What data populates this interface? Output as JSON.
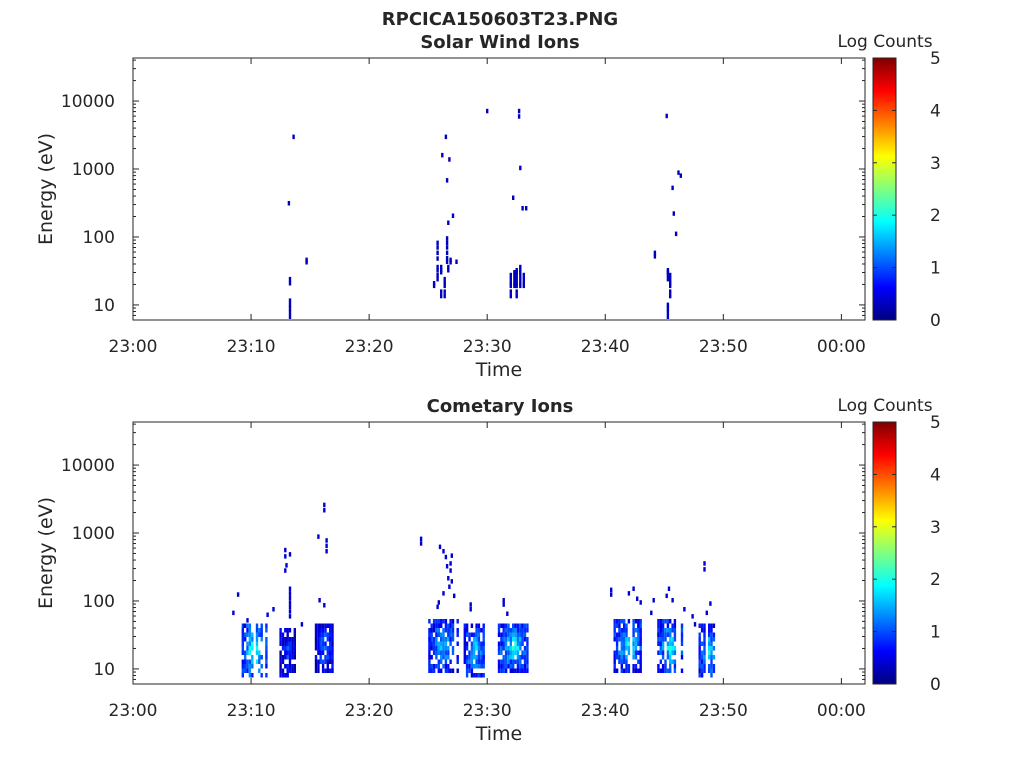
{
  "figure": {
    "filename": "RPCICA150603T23.PNG"
  },
  "colormap": "jet",
  "chart_data": [
    {
      "type": "heatmap",
      "title": "Solar Wind Ions",
      "xlabel": "Time",
      "ylabel": "Energy (eV)",
      "yscale": "log",
      "xticks": [
        "23:00",
        "23:10",
        "23:20",
        "23:30",
        "23:40",
        "23:50",
        "00:00"
      ],
      "yticks": [
        "10",
        "100",
        "1000",
        "10000"
      ],
      "colorbar": {
        "label": "Log Counts",
        "ticks": [
          "0",
          "1",
          "2",
          "3",
          "4",
          "5"
        ]
      },
      "points": [
        [
          13.2,
          6.2,
          0.3
        ],
        [
          13.2,
          7.2,
          0.3
        ],
        [
          13.2,
          8.2,
          0.3
        ],
        [
          13.2,
          9.3,
          0.3
        ],
        [
          13.2,
          10.7,
          0.3
        ],
        [
          13.2,
          19.3,
          0.3
        ],
        [
          13.2,
          22.2,
          0.3
        ],
        [
          13.1,
          290,
          0.3
        ],
        [
          13.5,
          2750,
          0.3
        ],
        [
          14.6,
          39.3,
          0.3
        ],
        [
          14.6,
          42.7,
          0.3
        ],
        [
          25.4,
          17.7,
          0.3
        ],
        [
          25.4,
          19.3,
          0.3
        ],
        [
          25.7,
          22.2,
          0.3
        ],
        [
          25.7,
          25.5,
          0.3
        ],
        [
          25.7,
          30,
          0.3
        ],
        [
          25.7,
          33.4,
          0.3
        ],
        [
          25.7,
          44.6,
          0.3
        ],
        [
          25.7,
          54,
          0.3
        ],
        [
          25.7,
          65,
          0.3
        ],
        [
          25.7,
          76,
          0.3
        ],
        [
          26.0,
          12.5,
          0.3
        ],
        [
          26.0,
          14.5,
          0.3
        ],
        [
          26.0,
          28,
          0.3
        ],
        [
          26.0,
          30,
          0.3
        ],
        [
          26.0,
          33.4,
          0.3
        ],
        [
          26.3,
          12.5,
          0.3
        ],
        [
          26.3,
          14.5,
          0.3
        ],
        [
          26.3,
          17.7,
          0.3
        ],
        [
          26.3,
          19.3,
          0.3
        ],
        [
          26.3,
          22.2,
          0.3
        ],
        [
          26.5,
          40,
          0.3
        ],
        [
          26.5,
          45,
          0.3
        ],
        [
          26.5,
          54,
          0.3
        ],
        [
          26.5,
          65,
          0.3
        ],
        [
          26.5,
          76,
          0.3
        ],
        [
          26.5,
          88,
          0.3
        ],
        [
          26.6,
          30,
          0.3
        ],
        [
          26.6,
          33.4,
          0.3
        ],
        [
          26.8,
          39.3,
          0.3
        ],
        [
          26.8,
          42.7,
          0.3
        ],
        [
          26.1,
          1480,
          0.3
        ],
        [
          26.4,
          2750,
          0.3
        ],
        [
          26.7,
          1280,
          0.3
        ],
        [
          26.5,
          630,
          0.3
        ],
        [
          26.6,
          150,
          0.3
        ],
        [
          27.0,
          190,
          0.3
        ],
        [
          27.3,
          40,
          0.3
        ],
        [
          29.9,
          6600,
          0.3
        ],
        [
          32.1,
          350,
          0.3
        ],
        [
          32.6,
          5500,
          0.3
        ],
        [
          32.6,
          6600,
          0.3
        ],
        [
          32.7,
          960,
          0.3
        ],
        [
          32.9,
          245,
          0.3
        ],
        [
          33.2,
          245,
          0.3
        ],
        [
          31.9,
          12.5,
          0.3
        ],
        [
          31.9,
          14.5,
          0.3
        ],
        [
          31.9,
          17.7,
          0.3
        ],
        [
          31.9,
          19.3,
          0.3
        ],
        [
          31.9,
          22.2,
          0.3
        ],
        [
          31.9,
          25.5,
          0.3
        ],
        [
          32.2,
          17.7,
          0.3
        ],
        [
          32.2,
          19.3,
          0.3
        ],
        [
          32.2,
          22.2,
          0.3
        ],
        [
          32.2,
          25.5,
          0.3
        ],
        [
          32.2,
          28,
          0.3
        ],
        [
          32.4,
          12.5,
          0.3
        ],
        [
          32.4,
          14.5,
          0.3
        ],
        [
          32.4,
          17.7,
          0.3
        ],
        [
          32.4,
          19.3,
          0.3
        ],
        [
          32.4,
          22.2,
          0.3
        ],
        [
          32.4,
          25.5,
          0.3
        ],
        [
          32.4,
          28,
          0.3
        ],
        [
          32.4,
          30,
          0.3
        ],
        [
          32.7,
          17.7,
          0.3
        ],
        [
          32.7,
          19.3,
          0.3
        ],
        [
          32.7,
          22.2,
          0.3
        ],
        [
          32.7,
          25.5,
          0.3
        ],
        [
          32.7,
          28,
          0.3
        ],
        [
          32.7,
          30,
          0.3
        ],
        [
          32.7,
          33.4,
          0.3
        ],
        [
          33.0,
          17.7,
          0.3
        ],
        [
          33.0,
          19.3,
          0.3
        ],
        [
          33.0,
          22.2,
          0.3
        ],
        [
          33.0,
          25.5,
          0.3
        ],
        [
          44.1,
          48,
          0.3
        ],
        [
          44.1,
          54,
          0.3
        ],
        [
          45.2,
          6.2,
          0.3
        ],
        [
          45.2,
          7.2,
          0.3
        ],
        [
          45.2,
          8.2,
          0.3
        ],
        [
          45.2,
          9.3,
          0.3
        ],
        [
          45.2,
          22.2,
          0.3
        ],
        [
          45.2,
          25.5,
          0.3
        ],
        [
          45.2,
          28,
          0.3
        ],
        [
          45.2,
          30,
          0.3
        ],
        [
          45.4,
          12.5,
          0.3
        ],
        [
          45.4,
          14.5,
          0.3
        ],
        [
          45.4,
          17.7,
          0.3
        ],
        [
          45.4,
          19.3,
          0.3
        ],
        [
          45.4,
          22.2,
          0.3
        ],
        [
          45.4,
          25.5,
          0.3
        ],
        [
          45.1,
          5600,
          0.3
        ],
        [
          45.6,
          490,
          0.3
        ],
        [
          45.7,
          205,
          0.3
        ],
        [
          45.9,
          103,
          0.3
        ],
        [
          46.1,
          820,
          0.3
        ],
        [
          46.3,
          740,
          0.3
        ]
      ]
    },
    {
      "type": "heatmap",
      "title": "Cometary Ions",
      "xlabel": "Time",
      "ylabel": "Energy (eV)",
      "yscale": "log",
      "xticks": [
        "23:00",
        "23:10",
        "23:20",
        "23:30",
        "23:40",
        "23:50",
        "00:00"
      ],
      "yticks": [
        "10",
        "100",
        "1000",
        "10000"
      ],
      "colorbar": {
        "label": "Log Counts",
        "ticks": [
          "0",
          "1",
          "2",
          "3",
          "4",
          "5"
        ]
      },
      "clusters": [
        {
          "t0": 9.2,
          "t1": 11.2,
          "elo": 6.5,
          "ehi": 45,
          "peak": 2.3
        },
        {
          "t0": 12.4,
          "t1": 13.7,
          "elo": 6.5,
          "ehi": 40,
          "peak": 1.0
        },
        {
          "t0": 15.4,
          "t1": 16.8,
          "elo": 7.5,
          "ehi": 45,
          "peak": 1.2
        },
        {
          "t0": 25.0,
          "t1": 27.4,
          "elo": 8.5,
          "ehi": 52,
          "peak": 1.7
        },
        {
          "t0": 28.0,
          "t1": 29.7,
          "elo": 6.5,
          "ehi": 45,
          "peak": 1.8
        },
        {
          "t0": 30.9,
          "t1": 33.5,
          "elo": 8.5,
          "ehi": 45,
          "peak": 2.0
        },
        {
          "t0": 40.7,
          "t1": 43.1,
          "elo": 8.5,
          "ehi": 50,
          "peak": 1.9
        },
        {
          "t0": 44.4,
          "t1": 46.5,
          "elo": 7.5,
          "ehi": 48,
          "peak": 2.0
        },
        {
          "t0": 47.9,
          "t1": 49.5,
          "elo": 6.5,
          "ehi": 42,
          "peak": 1.9
        }
      ],
      "points": [
        [
          8.4,
          62,
          0.4
        ],
        [
          8.8,
          115,
          0.4
        ],
        [
          9.3,
          40,
          0.4
        ],
        [
          9.6,
          48,
          0.4
        ],
        [
          12.8,
          420,
          0.4
        ],
        [
          12.8,
          520,
          0.4
        ],
        [
          12.8,
          260,
          0.4
        ],
        [
          12.9,
          310,
          0.4
        ],
        [
          13.2,
          450,
          0.4
        ],
        [
          13.2,
          55,
          0.4
        ],
        [
          13.2,
          65,
          0.4
        ],
        [
          13.2,
          76,
          0.4
        ],
        [
          13.2,
          88,
          0.4
        ],
        [
          13.2,
          103,
          0.4
        ],
        [
          13.2,
          120,
          0.4
        ],
        [
          13.2,
          140,
          0.4
        ],
        [
          11.8,
          70,
          0.4
        ],
        [
          11.3,
          58,
          0.4
        ],
        [
          14.2,
          42,
          0.4
        ],
        [
          15.6,
          820,
          0.4
        ],
        [
          16.1,
          2400,
          0.4
        ],
        [
          16.1,
          2000,
          0.4
        ],
        [
          16.3,
          720,
          0.4
        ],
        [
          16.3,
          600,
          0.4
        ],
        [
          16.3,
          500,
          0.4
        ],
        [
          15.7,
          95,
          0.4
        ],
        [
          16.1,
          80,
          0.4
        ],
        [
          24.3,
          650,
          0.4
        ],
        [
          24.3,
          760,
          0.4
        ],
        [
          25.9,
          580,
          0.4
        ],
        [
          26.2,
          500,
          0.4
        ],
        [
          26.4,
          410,
          0.4
        ],
        [
          26.5,
          300,
          0.4
        ],
        [
          26.6,
          200,
          0.4
        ],
        [
          26.7,
          150,
          0.4
        ],
        [
          26.8,
          260,
          0.4
        ],
        [
          26.8,
          330,
          0.4
        ],
        [
          26.9,
          430,
          0.4
        ],
        [
          26.9,
          180,
          0.4
        ],
        [
          27.1,
          110,
          0.4
        ],
        [
          25.7,
          76,
          0.4
        ],
        [
          25.8,
          88,
          0.4
        ],
        [
          26.2,
          120,
          0.4
        ],
        [
          28.5,
          70,
          0.4
        ],
        [
          28.5,
          82,
          0.4
        ],
        [
          31.3,
          82,
          0.4
        ],
        [
          31.3,
          95,
          0.4
        ],
        [
          31.6,
          60,
          0.4
        ],
        [
          40.4,
          115,
          0.4
        ],
        [
          40.4,
          135,
          0.4
        ],
        [
          41.9,
          120,
          0.4
        ],
        [
          42.3,
          140,
          0.4
        ],
        [
          42.6,
          100,
          0.4
        ],
        [
          42.9,
          88,
          0.4
        ],
        [
          43.8,
          62,
          0.4
        ],
        [
          44.0,
          95,
          0.4
        ],
        [
          45.1,
          110,
          0.4
        ],
        [
          45.3,
          140,
          0.4
        ],
        [
          45.6,
          95,
          0.4
        ],
        [
          46.6,
          70,
          0.4
        ],
        [
          47.3,
          55,
          0.4
        ],
        [
          47.5,
          42,
          0.4
        ],
        [
          48.3,
          270,
          0.4
        ],
        [
          48.3,
          330,
          0.4
        ],
        [
          48.5,
          62,
          0.4
        ],
        [
          48.8,
          85,
          0.4
        ]
      ]
    }
  ]
}
